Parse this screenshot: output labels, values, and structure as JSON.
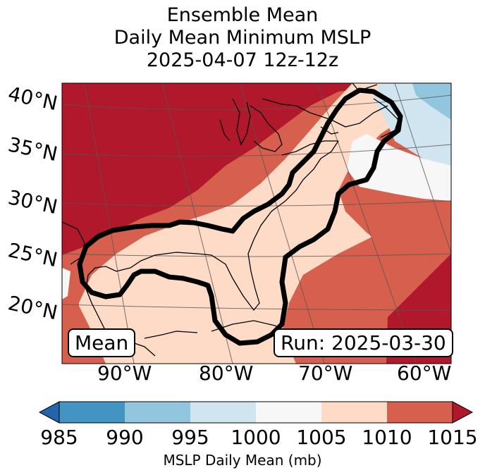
{
  "title": {
    "line1": "Ensemble Mean",
    "line2": "Daily Mean Minimum MSLP",
    "line3": "2025-04-07 12z-12z"
  },
  "map": {
    "lat_labels": [
      "40°N",
      "35°N",
      "30°N",
      "25°N",
      "20°N"
    ],
    "lon_labels": [
      "90°W",
      "80°W",
      "70°W",
      "60°W"
    ],
    "left_box": "Mean",
    "right_box": "Run: 2025-03-30",
    "colors": {
      "c1010_1015": "#b2182b",
      "c1005_1010": "#d6604d",
      "c1000_1005": "#fddbc7",
      "c995_1000": "#f7f7f7",
      "c990_995": "#d1e5f0",
      "c985_990": "#92c5de",
      "c_lt985": "#4393c3"
    }
  },
  "colorbar": {
    "label": "MSLP Daily Mean (mb)",
    "ticks": [
      "985",
      "990",
      "995",
      "1000",
      "1005",
      "1010",
      "1015"
    ],
    "colors": [
      "#4393c3",
      "#92c5de",
      "#d1e5f0",
      "#f7f7f7",
      "#fddbc7",
      "#d6604d"
    ],
    "under_color": "#2166ac",
    "over_color": "#b2182b"
  }
}
